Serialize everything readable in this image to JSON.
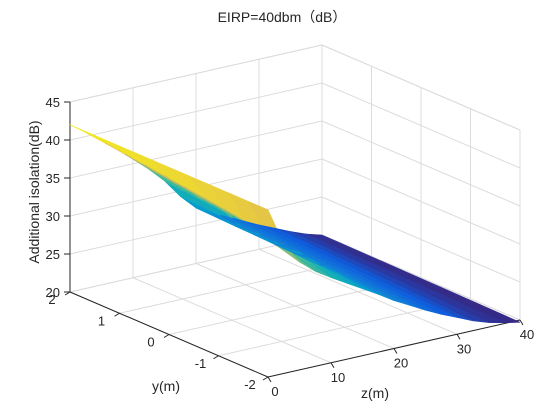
{
  "chart_data": {
    "type": "surface3d",
    "title": "EIRP=40dbm（dB）",
    "xlabel": "z(m)",
    "ylabel": "y(m)",
    "zlabel": "Additional isolation(dB)",
    "z_axis": {
      "range": [
        0,
        40
      ],
      "ticks": [
        "0",
        "10",
        "20",
        "30",
        "40"
      ]
    },
    "y_axis": {
      "range": [
        -2,
        2
      ],
      "ticks": [
        "-2",
        "-1",
        "0",
        "1",
        "2"
      ]
    },
    "value_axis": {
      "range": [
        20,
        45
      ],
      "ticks": [
        "20",
        "25",
        "30",
        "35",
        "40",
        "45"
      ]
    },
    "grid": true,
    "colormap": "parula",
    "color_limits": [
      20,
      42
    ],
    "surface": {
      "z": [
        0,
        2.5,
        5,
        7.5,
        10,
        12.5,
        15,
        17.5,
        20,
        22.5,
        25,
        27.5,
        30,
        32.5,
        35,
        37.5,
        40
      ],
      "y": [
        -2,
        -1.6,
        -1.2,
        -0.8,
        -0.4,
        0,
        0.4,
        0.8,
        1.2,
        1.6,
        2
      ],
      "edge_top": [
        42,
        40.5,
        39,
        37.3,
        35.6,
        33.8,
        31.8,
        29.3,
        27.3,
        26.2,
        25.2,
        24.2,
        23.2,
        22.3,
        21.4,
        20.6,
        20.0
      ],
      "edge_bottom": [
        42,
        37.0,
        34.2,
        32.5,
        31.2,
        30.0,
        28.8,
        27.6,
        26.3,
        25.2,
        24.1,
        23.1,
        22.2,
        21.3,
        20.6,
        20.1,
        19.7
      ]
    }
  }
}
